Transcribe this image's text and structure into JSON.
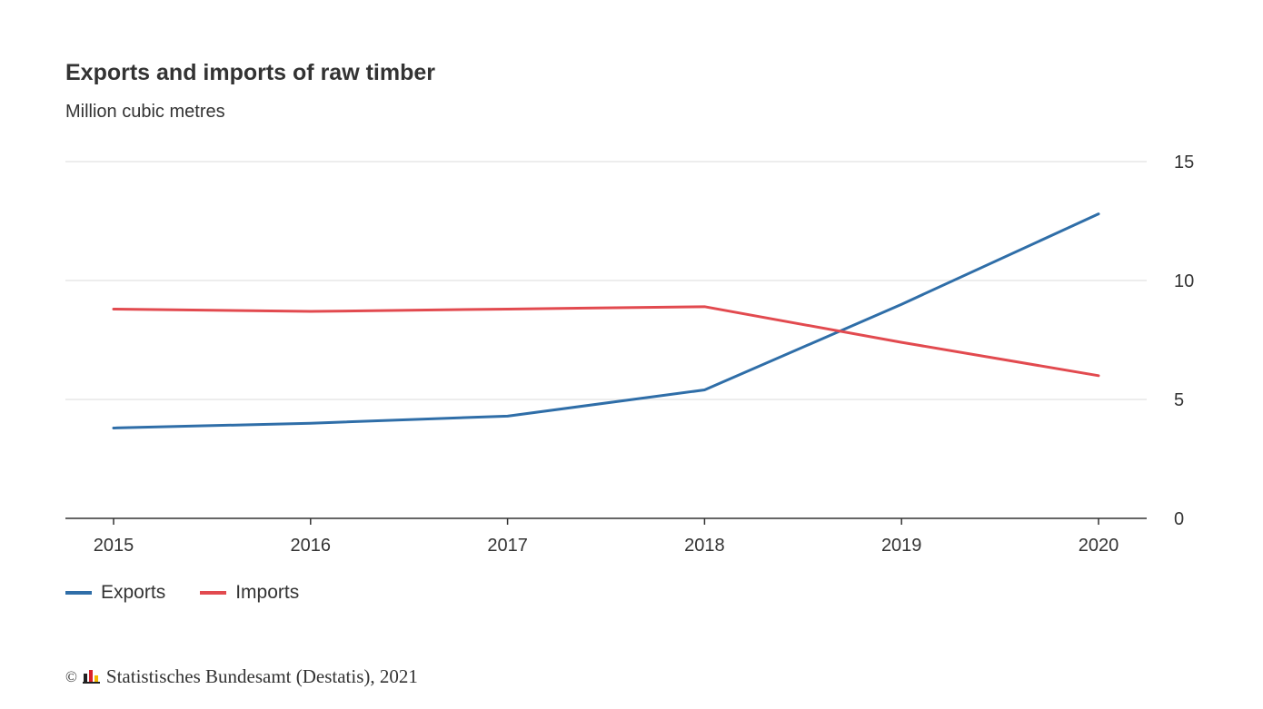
{
  "chart_data": {
    "type": "line",
    "title": "Exports and imports of raw timber",
    "subtitle": "Million cubic metres",
    "x": [
      "2015",
      "2016",
      "2017",
      "2018",
      "2019",
      "2020"
    ],
    "series": [
      {
        "name": "Exports",
        "color": "#2f6ea8",
        "values": [
          3.8,
          4.0,
          4.3,
          5.4,
          9.0,
          12.8
        ]
      },
      {
        "name": "Imports",
        "color": "#e24a4f",
        "values": [
          8.8,
          8.7,
          8.8,
          8.9,
          7.4,
          6.0
        ]
      }
    ],
    "ylim": [
      0,
      15
    ],
    "yticks": [
      "0",
      "5",
      "10",
      "15"
    ],
    "yaxis_side": "right",
    "grid": true,
    "legend_position": "bottom-left"
  },
  "legend": {
    "exports_label": "Exports",
    "imports_label": "Imports"
  },
  "source": {
    "copyright_symbol": "©",
    "text": "Statistisches Bundesamt (Destatis), 2021"
  }
}
